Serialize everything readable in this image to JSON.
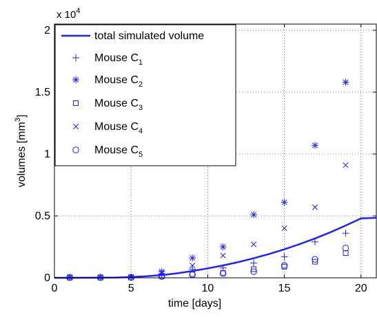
{
  "chart_data": {
    "type": "scatter",
    "xlabel": "time [days]",
    "ylabel_main": "volumes [mm",
    "ylabel_sup": "3",
    "ylabel_close": "]",
    "y_multiplier": "x 10",
    "y_multiplier_exp": "4",
    "xlim": [
      0,
      21
    ],
    "ylim": [
      0,
      2.05
    ],
    "xticks": [
      0,
      5,
      10,
      15,
      20
    ],
    "yticks": [
      0,
      0.5,
      1,
      1.5,
      2
    ],
    "xtick_labels": [
      "0",
      "5",
      "10",
      "15",
      "20"
    ],
    "ytick_labels": [
      "0",
      "0.5",
      "1",
      "1.5",
      "2"
    ],
    "grid": true,
    "legend_position": "top-left",
    "color": "#1f1fff",
    "series": [
      {
        "name": "total simulated volume",
        "label_main": "total simulated volume",
        "label_sub": "",
        "kind": "line",
        "x": [
          0,
          1,
          2,
          3,
          4,
          5,
          6,
          7,
          8,
          9,
          10,
          11,
          12,
          13,
          14,
          15,
          16,
          17,
          18,
          19,
          20,
          21
        ],
        "y": [
          0,
          0,
          0.0003,
          0.001,
          0.0025,
          0.006,
          0.012,
          0.022,
          0.036,
          0.055,
          0.076,
          0.1,
          0.127,
          0.158,
          0.192,
          0.23,
          0.272,
          0.318,
          0.368,
          0.422,
          0.48,
          0.485
        ]
      },
      {
        "name": "Mouse C1",
        "label_main": "Mouse C",
        "label_sub": "1",
        "kind": "points",
        "marker": "plus",
        "x": [
          1,
          3,
          5,
          7,
          9,
          11,
          13,
          15,
          17,
          19
        ],
        "y": [
          0.003,
          0.003,
          0.004,
          0.03,
          0.07,
          0.08,
          0.12,
          0.17,
          0.29,
          0.36
        ]
      },
      {
        "name": "Mouse C2",
        "label_main": "Mouse C",
        "label_sub": "2",
        "kind": "points",
        "marker": "star",
        "x": [
          1,
          3,
          5,
          7,
          9,
          11,
          13,
          15,
          17,
          19
        ],
        "y": [
          0.004,
          0.004,
          0.007,
          0.05,
          0.16,
          0.25,
          0.51,
          0.61,
          1.07,
          1.58
        ]
      },
      {
        "name": "Mouse C3",
        "label_main": "Mouse C",
        "label_sub": "3",
        "kind": "points",
        "marker": "square",
        "x": [
          1,
          3,
          5,
          7,
          9,
          11,
          13,
          15,
          17,
          19
        ],
        "y": [
          0.002,
          0.002,
          0.003,
          0.015,
          0.03,
          0.04,
          0.07,
          0.09,
          0.13,
          0.2
        ]
      },
      {
        "name": "Mouse C4",
        "label_main": "Mouse C",
        "label_sub": "4",
        "kind": "points",
        "marker": "x",
        "x": [
          1,
          3,
          5,
          7,
          9,
          11,
          13,
          15,
          17,
          19
        ],
        "y": [
          0.004,
          0.004,
          0.006,
          0.04,
          0.1,
          0.18,
          0.27,
          0.4,
          0.57,
          0.91
        ]
      },
      {
        "name": "Mouse C5",
        "label_main": "Mouse C",
        "label_sub": "5",
        "kind": "points",
        "marker": "circle",
        "x": [
          1,
          3,
          5,
          7,
          9,
          11,
          13,
          15,
          17,
          19
        ],
        "y": [
          0.002,
          0.002,
          0.003,
          0.01,
          0.025,
          0.035,
          0.05,
          0.1,
          0.15,
          0.24
        ]
      }
    ]
  }
}
